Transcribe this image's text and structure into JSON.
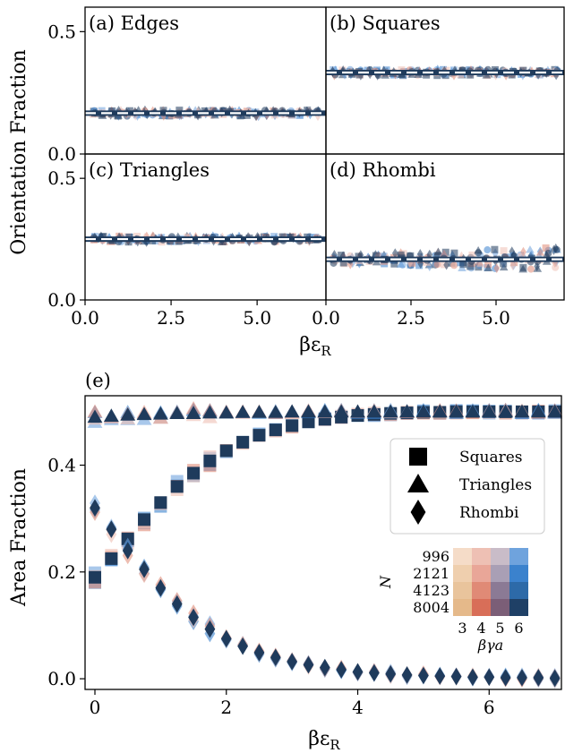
{
  "chart_data": [
    {
      "type": "scatter",
      "panel": "(a) Edges",
      "label": "(a) Edges",
      "x_values": [
        0,
        0.25,
        0.5,
        0.75,
        1,
        1.25,
        1.5,
        1.75,
        2,
        2.25,
        2.5,
        2.75,
        3,
        3.25,
        3.5,
        3.75,
        4,
        4.25,
        4.5,
        4.75,
        5,
        5.25,
        5.5,
        5.75,
        6,
        6.25,
        6.5,
        6.75,
        7
      ],
      "y_mean": 0.167,
      "reference_line": 0.167,
      "xlim": [
        0,
        7
      ],
      "ylim": [
        0,
        0.6
      ],
      "xticks": [],
      "yticks": [
        "0.0",
        "0.5"
      ],
      "ylabel": "Orientation Fraction"
    },
    {
      "type": "scatter",
      "panel": "(b) Squares",
      "label": "(b) Squares",
      "x_values": [
        0,
        0.25,
        0.5,
        0.75,
        1,
        1.25,
        1.5,
        1.75,
        2,
        2.25,
        2.5,
        2.75,
        3,
        3.25,
        3.5,
        3.75,
        4,
        4.25,
        4.5,
        4.75,
        5,
        5.25,
        5.5,
        5.75,
        6,
        6.25,
        6.5,
        6.75,
        7
      ],
      "y_mean": 0.333,
      "reference_line": 0.333,
      "xlim": [
        0,
        7
      ],
      "ylim": [
        0,
        0.6
      ],
      "xticks": [],
      "yticks": []
    },
    {
      "type": "scatter",
      "panel": "(c) Triangles",
      "label": "(c) Triangles",
      "x_values": [
        0,
        0.25,
        0.5,
        0.75,
        1,
        1.25,
        1.5,
        1.75,
        2,
        2.25,
        2.5,
        2.75,
        3,
        3.25,
        3.5,
        3.75,
        4,
        4.25,
        4.5,
        4.75,
        5,
        5.25,
        5.5,
        5.75,
        6,
        6.25,
        6.5,
        6.75,
        7
      ],
      "y_mean": 0.25,
      "reference_line": 0.25,
      "xlim": [
        0,
        7
      ],
      "ylim": [
        0,
        0.6
      ],
      "xticks": [
        "0.0",
        "2.5",
        "5.0"
      ],
      "yticks": [
        "0.0",
        "0.5"
      ]
    },
    {
      "type": "scatter",
      "panel": "(d) Rhombi",
      "label": "(d) Rhombi",
      "x_values": [
        0,
        0.25,
        0.5,
        0.75,
        1,
        1.25,
        1.5,
        1.75,
        2,
        2.25,
        2.5,
        2.75,
        3,
        3.25,
        3.5,
        3.75,
        4,
        4.25,
        4.5,
        4.75,
        5,
        5.25,
        5.5,
        5.75,
        6,
        6.25,
        6.5,
        6.75,
        7
      ],
      "y_mean": 0.167,
      "reference_line": 0.167,
      "xlim": [
        0,
        7
      ],
      "ylim": [
        0,
        0.6
      ],
      "xticks": [
        "0.0",
        "2.5",
        "5.0"
      ],
      "yticks": [],
      "xlabel": "βε_R"
    },
    {
      "type": "scatter",
      "panel": "(e)",
      "label": "(e)",
      "x": [
        0,
        0.25,
        0.5,
        0.75,
        1,
        1.25,
        1.5,
        1.75,
        2,
        2.25,
        2.5,
        2.75,
        3,
        3.25,
        3.5,
        3.75,
        4,
        4.25,
        4.5,
        4.75,
        5,
        5.25,
        5.5,
        5.75,
        6,
        6.25,
        6.5,
        6.75,
        7
      ],
      "series": [
        {
          "name": "Squares",
          "marker": "square",
          "values": [
            0.19,
            0.225,
            0.262,
            0.298,
            0.33,
            0.36,
            0.385,
            0.408,
            0.427,
            0.443,
            0.456,
            0.466,
            0.474,
            0.481,
            0.486,
            0.49,
            0.493,
            0.495,
            0.497,
            0.498,
            0.499,
            0.499,
            0.5,
            0.5,
            0.5,
            0.5,
            0.5,
            0.5,
            0.5
          ]
        },
        {
          "name": "Triangles",
          "marker": "triangle",
          "values": [
            0.49,
            0.492,
            0.494,
            0.495,
            0.496,
            0.497,
            0.497,
            0.498,
            0.498,
            0.499,
            0.499,
            0.499,
            0.5,
            0.5,
            0.5,
            0.5,
            0.5,
            0.5,
            0.5,
            0.5,
            0.5,
            0.5,
            0.5,
            0.5,
            0.5,
            0.5,
            0.5,
            0.5,
            0.5
          ]
        },
        {
          "name": "Rhombi",
          "marker": "diamond",
          "values": [
            0.32,
            0.28,
            0.24,
            0.205,
            0.17,
            0.14,
            0.115,
            0.093,
            0.075,
            0.061,
            0.049,
            0.04,
            0.032,
            0.026,
            0.021,
            0.017,
            0.013,
            0.011,
            0.009,
            0.007,
            0.006,
            0.005,
            0.004,
            0.003,
            0.003,
            0.002,
            0.002,
            0.002,
            0.001
          ]
        }
      ],
      "xlim": [
        -0.15,
        7.1
      ],
      "ylim": [
        -0.02,
        0.53
      ],
      "xticks": [
        "0",
        "2",
        "4",
        "6"
      ],
      "yticks": [
        "0.0",
        "0.2",
        "0.4"
      ],
      "xlabel": "βε_R",
      "ylabel": "Area Fraction",
      "legend": [
        "Squares",
        "Triangles",
        "Rhombi"
      ],
      "legend_position": "center-right",
      "colorbar": {
        "ylabel": "N",
        "xlabel": "βγa",
        "rows": [
          "996",
          "2121",
          "4123",
          "8004"
        ],
        "cols": [
          "3",
          "4",
          "5",
          "6"
        ],
        "colors": [
          [
            "#f5dcc8",
            "#eec0b4",
            "#c9bcc8",
            "#6fa3dd"
          ],
          [
            "#efcfae",
            "#e9a698",
            "#a99fb5",
            "#3b82cd"
          ],
          [
            "#e9c49c",
            "#e08a76",
            "#8b7a95",
            "#2d6aa8"
          ],
          [
            "#e5b98a",
            "#d86e58",
            "#7b5e77",
            "#1f4066"
          ]
        ]
      }
    }
  ],
  "labels": {
    "xlabel_top": "βε",
    "xlabel_top_sub": "R",
    "xlabel_bottom": "βε",
    "xlabel_bottom_sub": "R",
    "ylabel_top": "Orientation Fraction",
    "ylabel_bottom": "Area Fraction",
    "cb_ylabel": "N",
    "cb_xlabel": "βγa"
  },
  "colors": {
    "dark": "#1f3b5c",
    "mid_blue": "#3b82cd",
    "light_blue": "#6fa3dd",
    "orange": "#e08a76",
    "peach": "#eec0b4",
    "white_line": "#ffffff"
  }
}
